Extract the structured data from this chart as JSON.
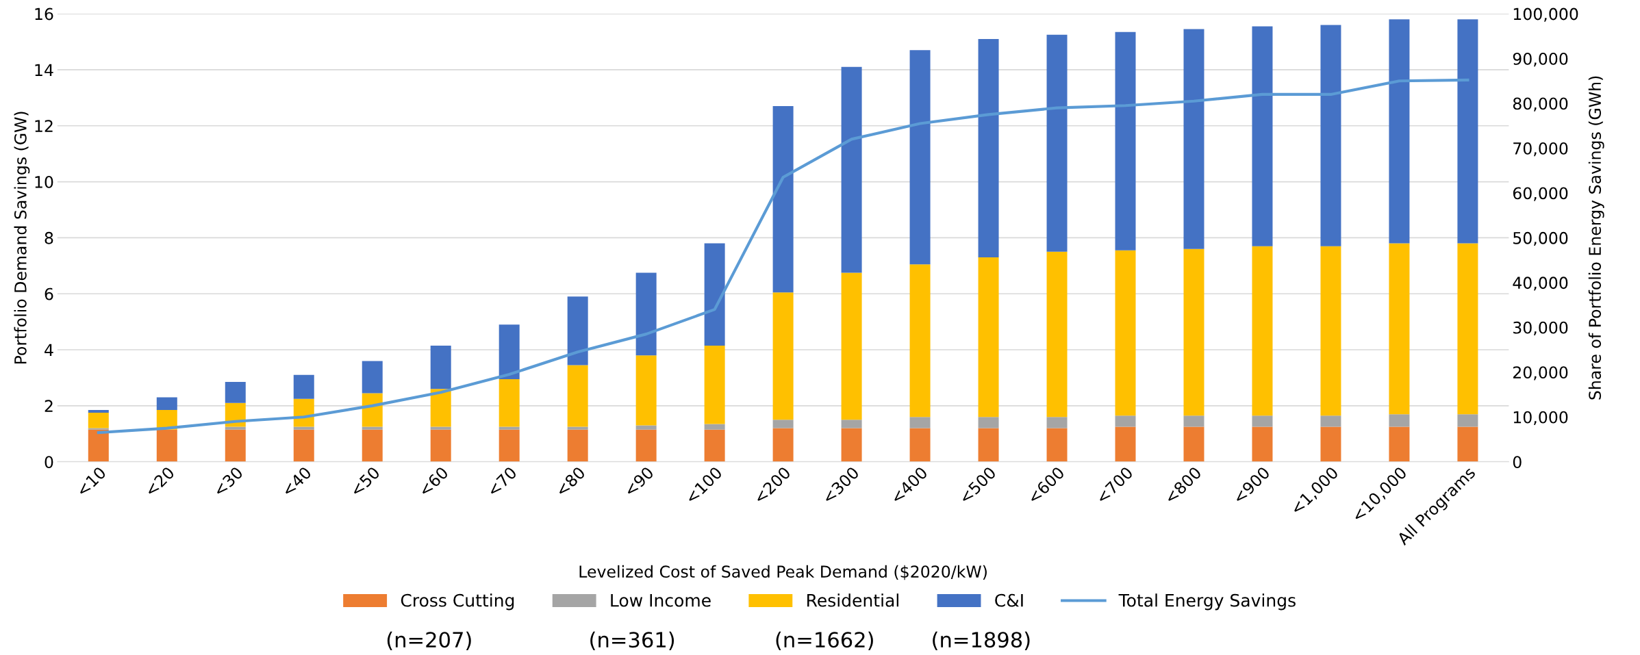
{
  "chart_data": {
    "type": "bar",
    "stacked": true,
    "categories": [
      "<10",
      "<20",
      "<30",
      "<40",
      "<50",
      "<60",
      "<70",
      "<80",
      "<90",
      "<100",
      "<200",
      "<300",
      "<400",
      "<500",
      "<600",
      "<700",
      "<800",
      "<900",
      "<1,000",
      "<10,000",
      "All Programs"
    ],
    "xlabel": "Levelized Cost of Saved Peak Demand ($2020/kW)",
    "ylabel": "Portfolio Demand Savings (GW)",
    "y2label": "Share of Portfolio Energy Savings (GWh)",
    "series": [
      {
        "name": "Cross Cutting",
        "color": "#ed7d31",
        "values": [
          1.15,
          1.15,
          1.15,
          1.15,
          1.15,
          1.15,
          1.15,
          1.15,
          1.15,
          1.15,
          1.2,
          1.2,
          1.2,
          1.2,
          1.2,
          1.25,
          1.25,
          1.25,
          1.25,
          1.25,
          1.25
        ]
      },
      {
        "name": "Low Income",
        "color": "#a5a5a5",
        "values": [
          0.05,
          null,
          0.1,
          0.1,
          0.1,
          0.1,
          0.1,
          0.1,
          0.15,
          0.2,
          0.3,
          0.3,
          0.4,
          0.4,
          0.4,
          0.4,
          0.4,
          0.4,
          0.4,
          0.45,
          0.45
        ]
      },
      {
        "name": "Residential",
        "color": "#ffc000",
        "values": [
          0.55,
          0.7,
          0.85,
          1.0,
          1.2,
          1.35,
          1.7,
          2.2,
          2.5,
          2.8,
          4.55,
          5.25,
          5.45,
          5.7,
          5.9,
          5.9,
          5.95,
          6.05,
          6.05,
          6.1,
          6.1
        ]
      },
      {
        "name": "C&I",
        "color": "#4472c4",
        "values": [
          0.1,
          0.45,
          0.75,
          0.85,
          1.15,
          1.55,
          1.95,
          2.45,
          2.95,
          3.65,
          6.65,
          7.35,
          7.65,
          7.8,
          7.75,
          7.8,
          7.85,
          7.85,
          7.9,
          8.0,
          8.0
        ]
      },
      {
        "name": "Total Energy Savings",
        "type": "line",
        "axis": "y2",
        "color": "#5b9bd5",
        "values": [
          6500,
          7500,
          9000,
          10000,
          12500,
          15500,
          19500,
          24500,
          28500,
          34000,
          63500,
          72000,
          75500,
          77500,
          79000,
          79500,
          80500,
          82000,
          82000,
          85000,
          85200
        ]
      }
    ],
    "ylim": [
      0,
      16
    ],
    "yticks": [
      0,
      2,
      4,
      6,
      8,
      10,
      12,
      14,
      16
    ],
    "y2lim": [
      0,
      100000
    ],
    "y2ticks": [
      {
        "value": 0,
        "label": "0"
      },
      {
        "value": 10000,
        "label": "10,000"
      },
      {
        "value": 20000,
        "label": "20,000"
      },
      {
        "value": 30000,
        "label": "30,000"
      },
      {
        "value": 40000,
        "label": "40,000"
      },
      {
        "value": 50000,
        "label": "50,000"
      },
      {
        "value": 60000,
        "label": "60,000"
      },
      {
        "value": 70000,
        "label": "70,000"
      },
      {
        "value": 80000,
        "label": "80,000"
      },
      {
        "value": 90000,
        "label": "90,000"
      },
      {
        "value": 100000,
        "label": "100,000"
      }
    ],
    "grid": "y",
    "legend": "bottom",
    "marker": "none",
    "line_style": "solid",
    "annotations": [
      "(n=207)",
      "(n=361)",
      "(n=1662)",
      "(n=1898)"
    ]
  }
}
